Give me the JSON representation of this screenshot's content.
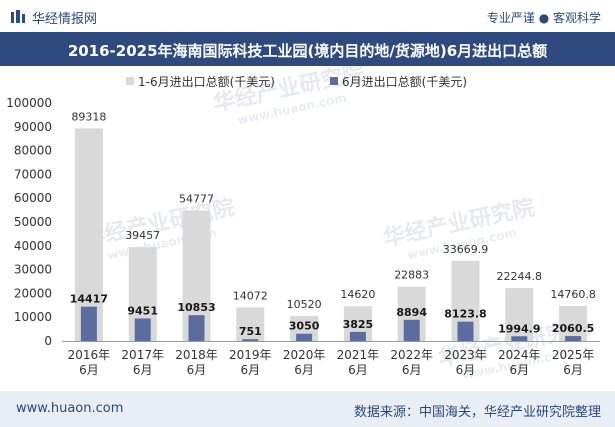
{
  "header": {
    "brand": "华经情报网",
    "tagline": "专业严谨 ● 客观科学",
    "logo_icon": "chart-logo-icon"
  },
  "footer": {
    "site": "www.huaon.com",
    "source": "数据来源：中国海关，华经产业研究院整理"
  },
  "watermark": {
    "cn": "华经产业研究院",
    "en": "www.huaon.com"
  },
  "colors": {
    "series1": "#d9d9d9",
    "series2": "#5a6d9e",
    "title_bg": "#2f4a7e",
    "footer_bg": "#e9edf4"
  },
  "chart_data": {
    "type": "bar",
    "title": "2016-2025年海南国际科技工业园(境内目的地/货源地)6月进出口总额",
    "categories": [
      [
        "2016年",
        "6月"
      ],
      [
        "2017年",
        "6月"
      ],
      [
        "2018年",
        "6月"
      ],
      [
        "2019年",
        "6月"
      ],
      [
        "2020年",
        "6月"
      ],
      [
        "2021年",
        "6月"
      ],
      [
        "2022年",
        "6月"
      ],
      [
        "2023年",
        "6月"
      ],
      [
        "2024年",
        "6月"
      ],
      [
        "2025年",
        "6月"
      ]
    ],
    "series": [
      {
        "name": "1-6月进出口总额(千美元)",
        "values": [
          89318,
          39457,
          54777,
          14072,
          10520,
          14620,
          22883,
          33669.9,
          22244.8,
          14760.8
        ],
        "labels": [
          "89318",
          "39457",
          "54777",
          "14072",
          "10520",
          "14620",
          "22883",
          "33669.9",
          "22244.8",
          "14760.8"
        ]
      },
      {
        "name": "6月进出口总额(千美元)",
        "values": [
          14417,
          9451,
          10853,
          751,
          3050,
          3825,
          8894,
          8123.8,
          1994.9,
          2060.5
        ],
        "labels": [
          "14417",
          "9451",
          "10853",
          "751",
          "3050",
          "3825",
          "8894",
          "8123.8",
          "1994.9",
          "2060.5"
        ]
      }
    ],
    "ylim": [
      0,
      100000
    ],
    "yticks": [
      "0",
      "10000",
      "20000",
      "30000",
      "40000",
      "50000",
      "60000",
      "70000",
      "80000",
      "90000",
      "100000"
    ],
    "legend_position": "top-center",
    "grid": false
  }
}
